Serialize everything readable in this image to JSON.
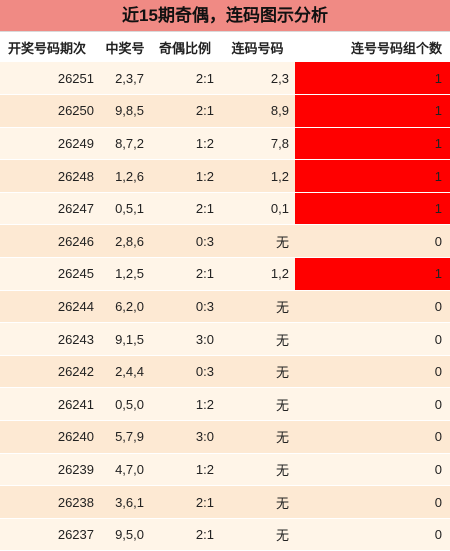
{
  "header": {
    "title": "近15期奇偶，连码图示分析"
  },
  "table": {
    "columns": [
      "开奖号码期次",
      "中奖号",
      "奇偶比例",
      "连码号码",
      "连号号码组个数"
    ],
    "highlight_color": "#ff0000",
    "rows": [
      [
        26251,
        "2,3,7",
        "2:1",
        "2,3",
        1
      ],
      [
        26250,
        "9,8,5",
        "2:1",
        "8,9",
        1
      ],
      [
        26249,
        "8,7,2",
        "1:2",
        "7,8",
        1
      ],
      [
        26248,
        "1,2,6",
        "1:2",
        "1,2",
        1
      ],
      [
        26247,
        "0,5,1",
        "2:1",
        "0,1",
        1
      ],
      [
        26246,
        "2,8,6",
        "0:3",
        "无",
        0
      ],
      [
        26245,
        "1,2,5",
        "2:1",
        "1,2",
        1
      ],
      [
        26244,
        "6,2,0",
        "0:3",
        "无",
        0
      ],
      [
        26243,
        "9,1,5",
        "3:0",
        "无",
        0
      ],
      [
        26242,
        "2,4,4",
        "0:3",
        "无",
        0
      ],
      [
        26241,
        "0,5,0",
        "1:2",
        "无",
        0
      ],
      [
        26240,
        "5,7,9",
        "3:0",
        "无",
        0
      ],
      [
        26239,
        "4,7,0",
        "1:2",
        "无",
        0
      ],
      [
        26238,
        "3,6,1",
        "2:1",
        "无",
        0
      ],
      [
        26237,
        "9,5,0",
        "2:1",
        "无",
        0
      ]
    ]
  }
}
